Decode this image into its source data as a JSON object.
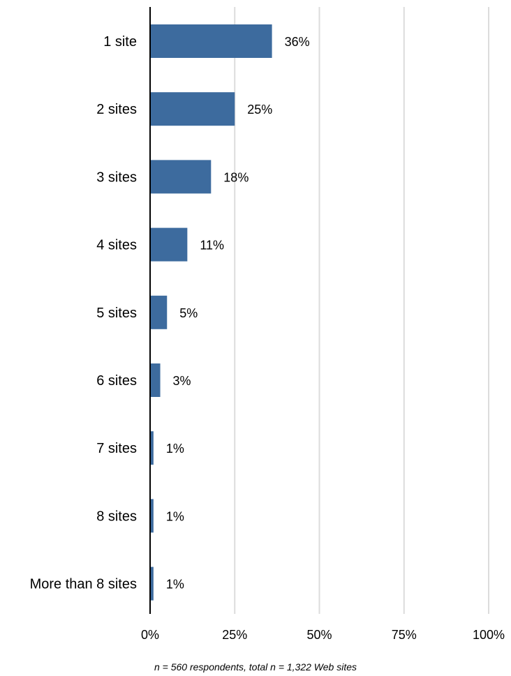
{
  "chart_data": {
    "type": "bar",
    "orientation": "horizontal",
    "categories": [
      "1 site",
      "2 sites",
      "3 sites",
      "4 sites",
      "5 sites",
      "6 sites",
      "7 sites",
      "8 sites",
      "More than 8 sites"
    ],
    "values": [
      36,
      25,
      18,
      11,
      5,
      3,
      1,
      1,
      1
    ],
    "value_labels": [
      "36%",
      "25%",
      "18%",
      "11%",
      "5%",
      "3%",
      "1%",
      "1%",
      "1%"
    ],
    "xlim": [
      0,
      100
    ],
    "x_ticks": [
      0,
      25,
      50,
      75,
      100
    ],
    "x_tick_labels": [
      "0%",
      "25%",
      "50%",
      "75%",
      "100%"
    ],
    "grid": "vertical",
    "bar_color": "#3d6b9e",
    "grid_color": "#dcdcdc",
    "note": "n = 560 respondents, total n = 1,322 Web sites"
  }
}
